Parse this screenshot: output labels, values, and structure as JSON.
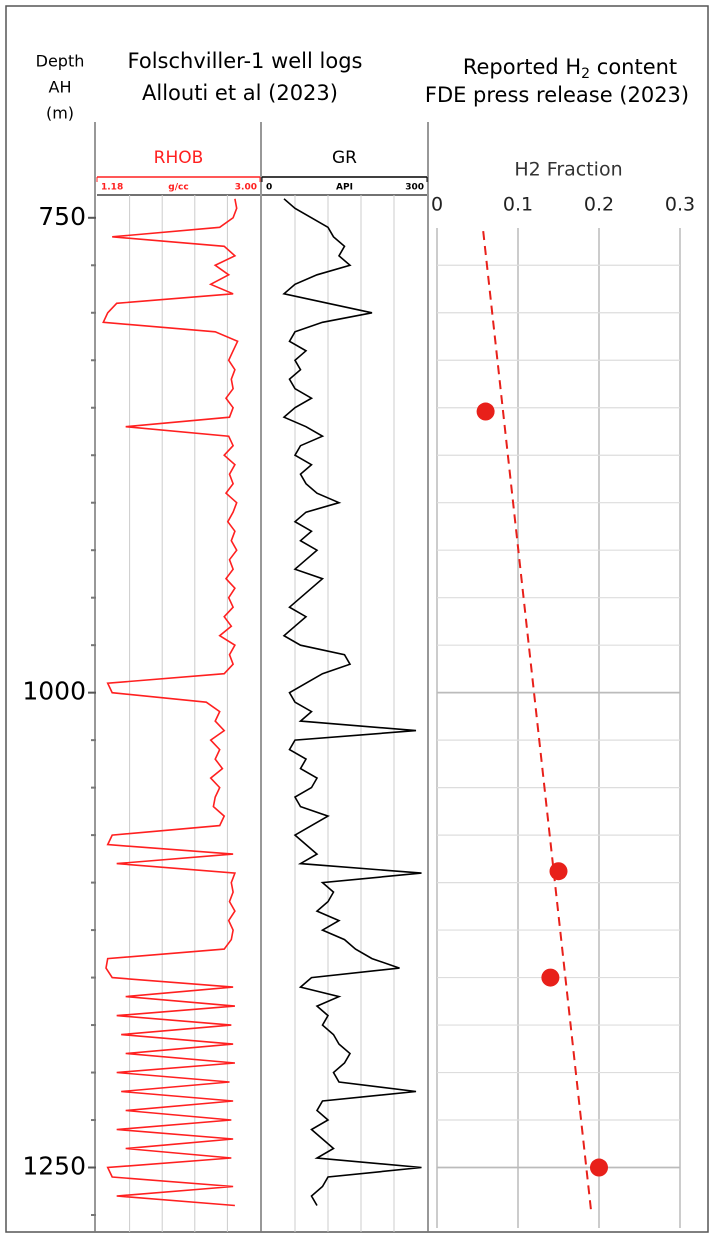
{
  "header": {
    "depth_label": [
      "Depth",
      "AH",
      "(m)"
    ],
    "left_title": [
      "Folschviller-1 well logs",
      "Allouti et al (2023)"
    ],
    "right_title_pre": "Reported H",
    "right_title_sub": "2",
    "right_title_post": " content",
    "right_title_2": "FDE press release (2023)"
  },
  "chart_data": [
    {
      "type": "log-track",
      "title": "RHOB",
      "unit": "g/cc",
      "color": "#ff2020",
      "xlim": [
        1.18,
        3.0
      ],
      "xticks": [
        {
          "value": 1.18,
          "label": "1.18"
        },
        {
          "value": 3.0,
          "label": "3.00"
        }
      ],
      "ylim": [
        738,
        1275
      ],
      "yticks": [
        750,
        1000,
        1250
      ],
      "minor_yticks": [
        775,
        800,
        825,
        850,
        875,
        900,
        925,
        950,
        975,
        1025,
        1050,
        1075,
        1100,
        1125,
        1150,
        1175,
        1200,
        1225,
        1275
      ],
      "y": [
        740,
        745,
        750,
        755,
        760,
        765,
        770,
        775,
        780,
        785,
        790,
        795,
        800,
        805,
        810,
        815,
        820,
        825,
        830,
        835,
        840,
        845,
        850,
        855,
        860,
        865,
        870,
        875,
        880,
        885,
        890,
        895,
        900,
        905,
        910,
        915,
        920,
        925,
        930,
        935,
        940,
        945,
        950,
        955,
        960,
        965,
        970,
        975,
        980,
        985,
        990,
        995,
        1000,
        1005,
        1010,
        1015,
        1020,
        1025,
        1030,
        1035,
        1040,
        1045,
        1050,
        1055,
        1060,
        1065,
        1070,
        1075,
        1080,
        1085,
        1090,
        1095,
        1100,
        1105,
        1110,
        1115,
        1120,
        1125,
        1130,
        1135,
        1140,
        1145,
        1150,
        1155,
        1160,
        1165,
        1170,
        1175,
        1180,
        1185,
        1190,
        1195,
        1200,
        1205,
        1210,
        1215,
        1220,
        1225,
        1230,
        1235,
        1240,
        1245,
        1250,
        1255,
        1260,
        1265,
        1270
      ],
      "values": [
        2.72,
        2.74,
        2.7,
        2.55,
        1.35,
        2.6,
        2.72,
        2.5,
        2.65,
        2.45,
        2.7,
        1.4,
        1.3,
        1.25,
        2.5,
        2.75,
        2.7,
        2.65,
        2.72,
        2.68,
        2.7,
        2.62,
        2.7,
        2.66,
        1.5,
        2.65,
        2.7,
        2.6,
        2.72,
        2.66,
        2.7,
        2.62,
        2.74,
        2.7,
        2.64,
        2.72,
        2.68,
        2.74,
        2.66,
        2.7,
        2.62,
        2.72,
        2.65,
        2.7,
        2.6,
        2.68,
        2.55,
        2.72,
        2.66,
        2.7,
        2.6,
        1.3,
        1.35,
        2.4,
        2.55,
        2.5,
        2.6,
        2.45,
        2.55,
        2.5,
        2.58,
        2.45,
        2.55,
        2.5,
        2.48,
        2.6,
        2.55,
        1.35,
        1.3,
        2.7,
        1.4,
        2.72,
        2.68,
        2.7,
        2.66,
        2.72,
        2.65,
        2.7,
        2.68,
        2.6,
        1.3,
        1.28,
        1.35,
        2.7,
        1.5,
        2.72,
        1.4,
        2.68,
        1.45,
        2.7,
        1.5,
        2.72,
        1.4,
        2.66,
        1.45,
        2.7,
        1.5,
        2.68,
        1.4,
        2.7,
        1.5,
        2.68,
        1.3,
        1.35,
        2.7,
        1.4,
        2.72
      ]
    },
    {
      "type": "log-track",
      "title": "GR",
      "unit": "API",
      "color": "#000000",
      "xlim": [
        0,
        300
      ],
      "xticks": [
        0,
        300
      ],
      "ylim": [
        738,
        1275
      ],
      "y": [
        740,
        745,
        750,
        755,
        760,
        765,
        770,
        775,
        780,
        785,
        790,
        795,
        800,
        805,
        810,
        815,
        820,
        825,
        830,
        835,
        840,
        845,
        850,
        855,
        860,
        865,
        870,
        875,
        880,
        885,
        890,
        895,
        900,
        905,
        910,
        915,
        920,
        925,
        930,
        935,
        940,
        945,
        950,
        955,
        960,
        965,
        970,
        975,
        980,
        985,
        990,
        995,
        1000,
        1005,
        1010,
        1015,
        1020,
        1025,
        1030,
        1035,
        1040,
        1045,
        1050,
        1055,
        1060,
        1065,
        1070,
        1075,
        1080,
        1085,
        1090,
        1095,
        1100,
        1105,
        1110,
        1115,
        1120,
        1125,
        1130,
        1135,
        1140,
        1145,
        1150,
        1155,
        1160,
        1165,
        1170,
        1175,
        1180,
        1185,
        1190,
        1195,
        1200,
        1205,
        1210,
        1215,
        1220,
        1225,
        1230,
        1235,
        1240,
        1245,
        1250,
        1255,
        1260,
        1265,
        1270
      ],
      "values": [
        40,
        60,
        90,
        120,
        130,
        150,
        140,
        160,
        100,
        60,
        40,
        120,
        200,
        110,
        60,
        50,
        80,
        60,
        70,
        50,
        60,
        90,
        60,
        40,
        80,
        110,
        70,
        60,
        90,
        70,
        80,
        100,
        140,
        80,
        60,
        90,
        70,
        100,
        80,
        60,
        110,
        90,
        70,
        50,
        80,
        60,
        40,
        70,
        150,
        160,
        110,
        80,
        50,
        60,
        90,
        70,
        280,
        60,
        50,
        80,
        70,
        100,
        90,
        60,
        70,
        120,
        90,
        60,
        80,
        100,
        70,
        290,
        110,
        130,
        120,
        100,
        140,
        110,
        150,
        170,
        200,
        250,
        90,
        70,
        140,
        100,
        120,
        110,
        130,
        140,
        160,
        150,
        130,
        140,
        280,
        110,
        100,
        120,
        90,
        110,
        130,
        100,
        290,
        120,
        110,
        90,
        100
      ]
    },
    {
      "type": "scatter",
      "title": "H2 Fraction",
      "color": "#e8201a",
      "xlim": [
        0,
        0.3
      ],
      "xticks": [
        0,
        0.1,
        0.2,
        0.3
      ],
      "ylim": [
        738,
        1275
      ],
      "yticks": [
        1000,
        1250
      ],
      "minor_yticks": [
        775,
        800,
        825,
        850,
        875,
        900,
        925,
        950,
        975,
        1025,
        1050,
        1075,
        1100,
        1125,
        1150,
        1175,
        1200,
        1225
      ],
      "x": [
        0.06,
        0.15,
        0.14,
        0.2
      ],
      "y": [
        852,
        1094,
        1150,
        1250
      ],
      "trend": {
        "x": [
          0.057,
          0.19
        ],
        "y": [
          757,
          1272
        ]
      }
    }
  ]
}
